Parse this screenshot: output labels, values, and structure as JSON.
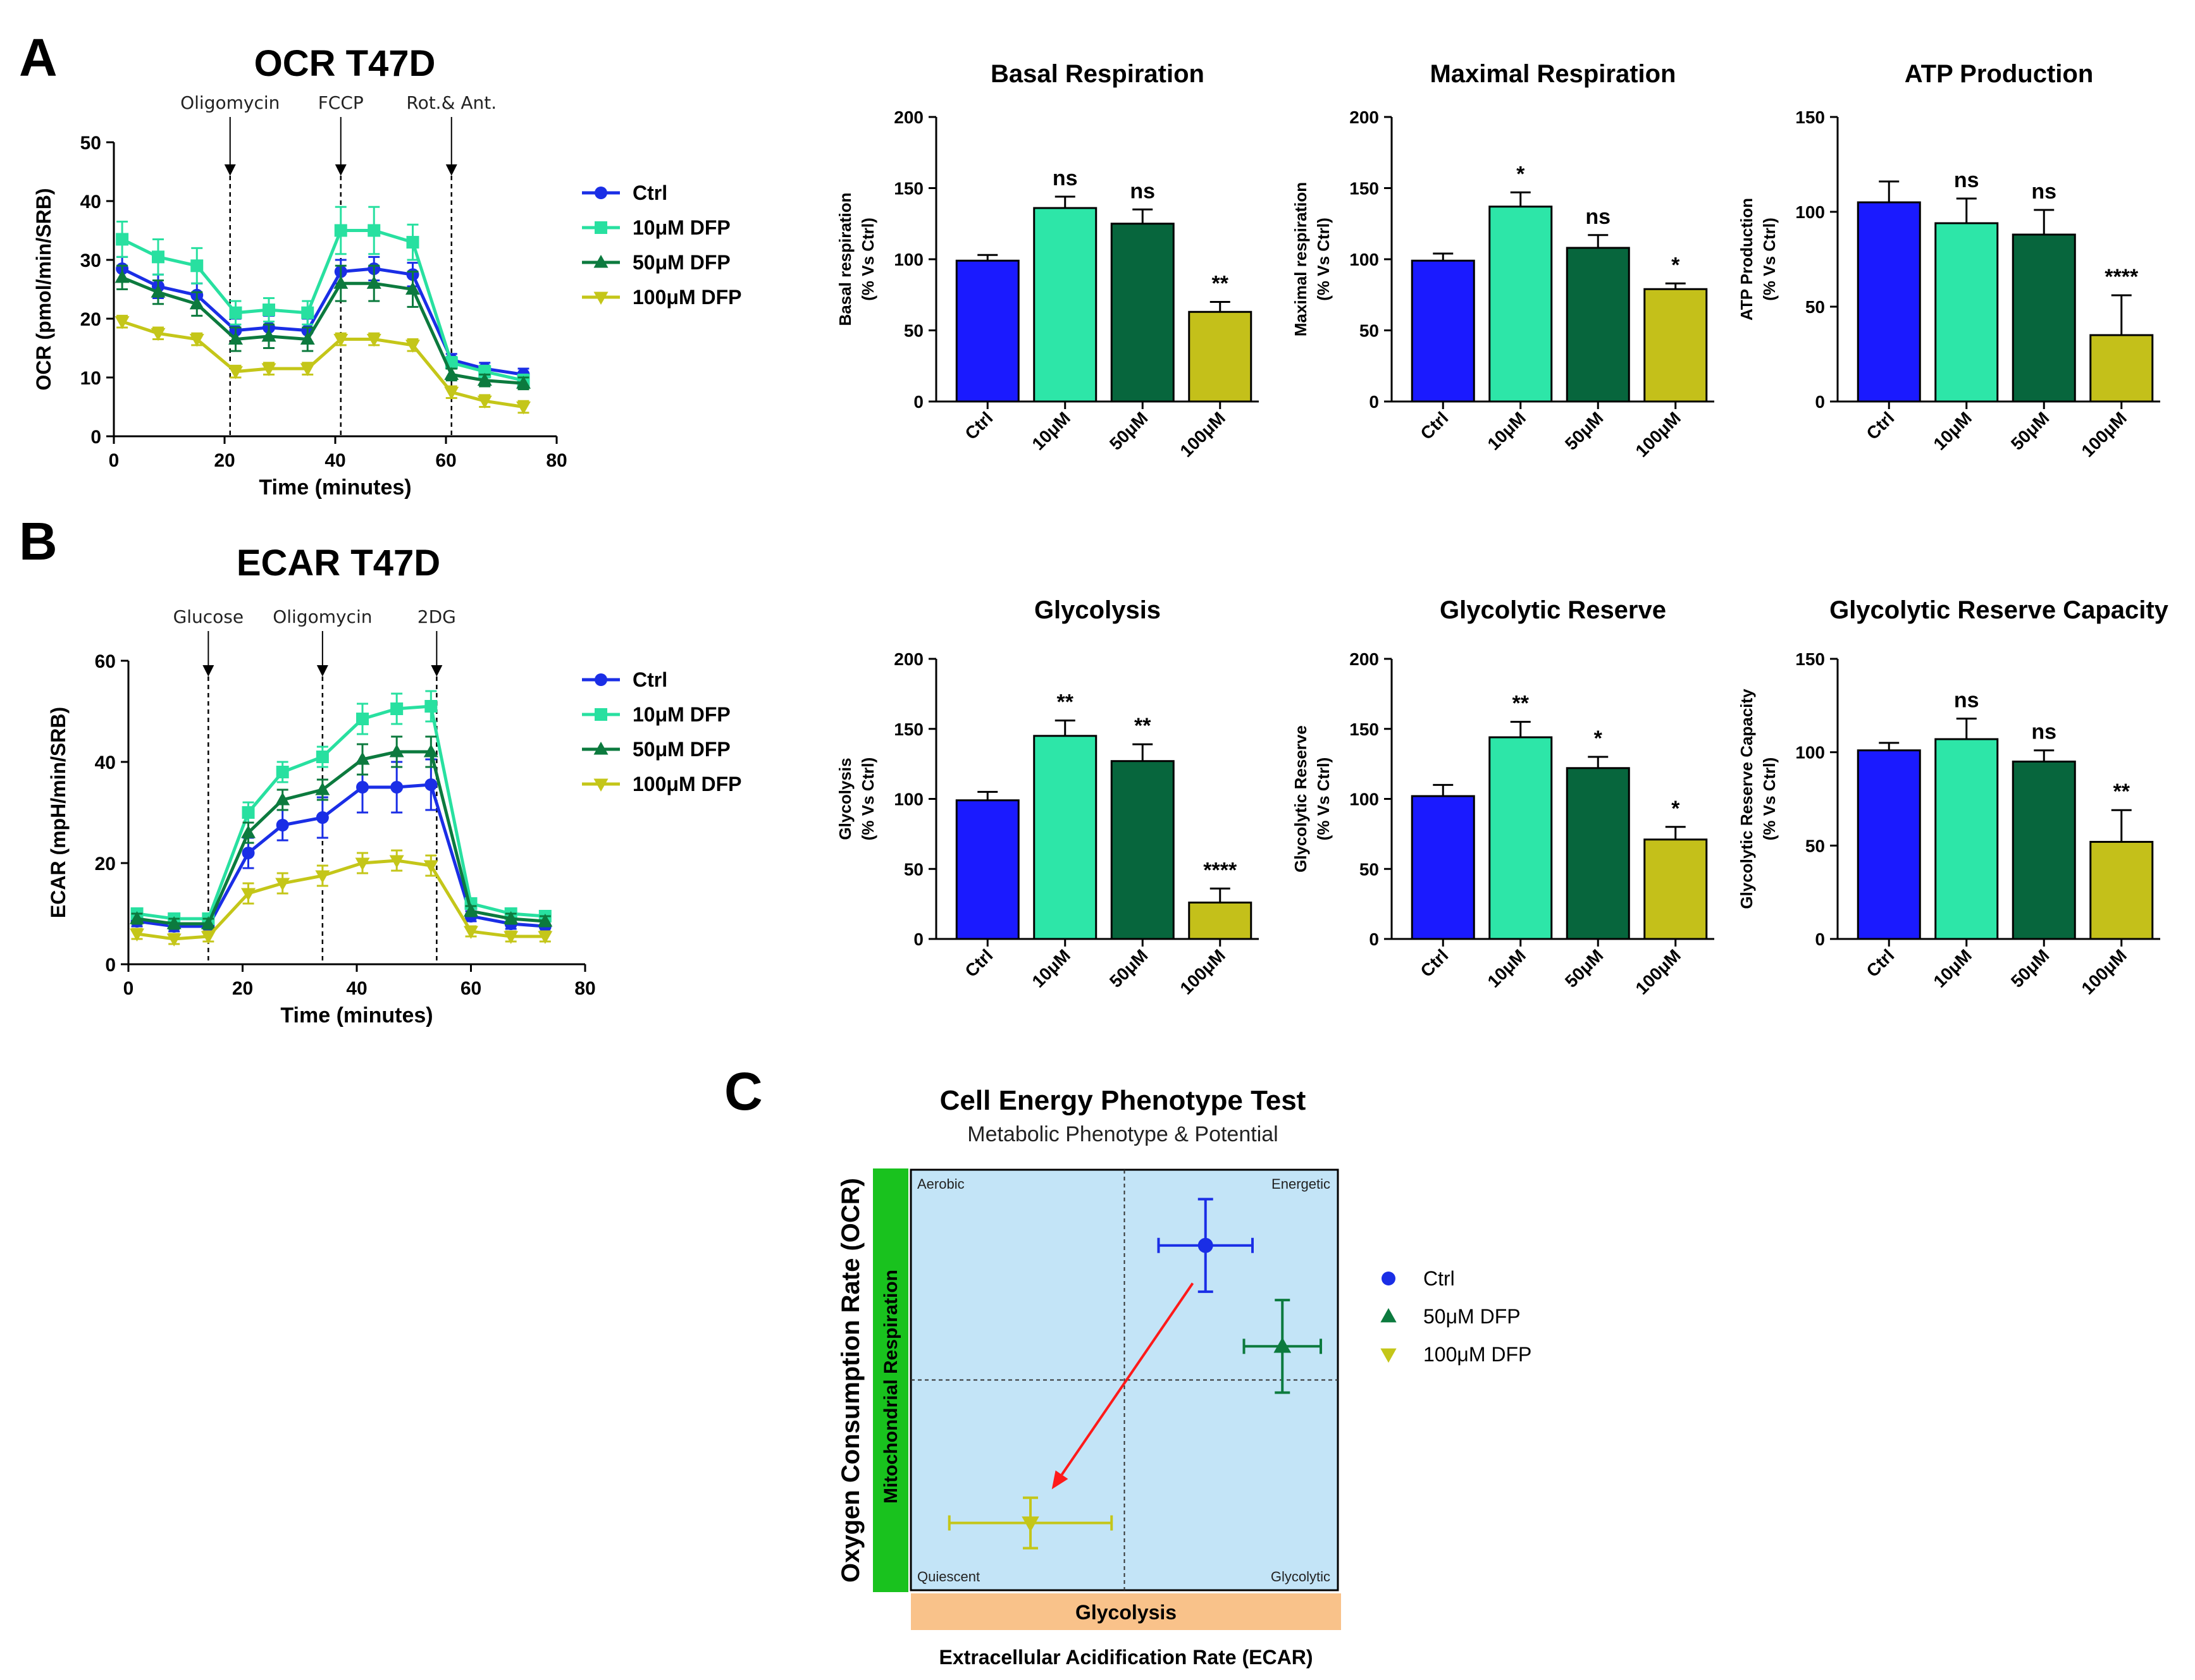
{
  "panel_labels": [
    "A",
    "B",
    "C"
  ],
  "chart_data": [
    {
      "id": "ocr_line",
      "type": "line",
      "title": "OCR  T47D",
      "xlabel": "Time (minutes)",
      "ylabel": "OCR (pmol/min/SRB)",
      "xlim": [
        0,
        80
      ],
      "ylim": [
        0,
        50
      ],
      "xticks": [
        0,
        20,
        40,
        60,
        80
      ],
      "yticks": [
        0,
        10,
        20,
        30,
        40,
        50
      ],
      "injections": [
        {
          "x": 21,
          "label": "Oligomycin"
        },
        {
          "x": 41,
          "label": "FCCP"
        },
        {
          "x": 61,
          "label": "Rot.& Ant."
        }
      ],
      "x": [
        1.5,
        8,
        15,
        22,
        28,
        35,
        41,
        47,
        54,
        61,
        67,
        74
      ],
      "series": [
        {
          "name": "Ctrl",
          "color": "#1a2ee6",
          "marker": "circle",
          "values": [
            28.5,
            25.5,
            24,
            18,
            18.5,
            18,
            28,
            28.5,
            27.5,
            13,
            11.5,
            10.5
          ],
          "errors": [
            2,
            2,
            2,
            2,
            2,
            2,
            2,
            2,
            2,
            1,
            1,
            1
          ]
        },
        {
          "name": "10μM DFP",
          "color": "#28e0a0",
          "marker": "square",
          "values": [
            33.5,
            30.5,
            29,
            21,
            21.5,
            21,
            35,
            35,
            33,
            12.5,
            11,
            9.5
          ],
          "errors": [
            3,
            3,
            3,
            2,
            2,
            2,
            4,
            4,
            3,
            1,
            1,
            1
          ]
        },
        {
          "name": "50μM DFP",
          "color": "#0c7a3e",
          "marker": "triangle",
          "values": [
            27,
            24.5,
            22.5,
            16.5,
            17,
            16.5,
            26,
            26,
            25,
            10.5,
            9.5,
            9
          ],
          "errors": [
            2,
            2,
            2,
            2,
            2,
            2,
            3,
            3,
            3,
            1,
            1,
            1
          ]
        },
        {
          "name": "100μM DFP",
          "color": "#c4c619",
          "marker": "triangle-down",
          "values": [
            19.5,
            17.5,
            16.5,
            11,
            11.5,
            11.5,
            16.5,
            16.5,
            15.5,
            7.5,
            6,
            5
          ],
          "errors": [
            1,
            1,
            1,
            1,
            1,
            1,
            1,
            1,
            1,
            1,
            1,
            1
          ]
        }
      ]
    },
    {
      "id": "basal",
      "type": "bar",
      "title": "Basal  Respiration",
      "ylabel_lines": [
        "Basal respiration",
        "(% Vs Ctrl)"
      ],
      "ylim": [
        0,
        200
      ],
      "yticks": [
        0,
        50,
        100,
        150,
        200
      ],
      "categories": [
        "Ctrl",
        "10μM",
        "50μM",
        "100μM"
      ],
      "colors": [
        "#1a1aff",
        "#2de6a8",
        "#07663d",
        "#c4c01a"
      ],
      "values": [
        99,
        136,
        125,
        63
      ],
      "errors": [
        4,
        8,
        10,
        7
      ],
      "sig": [
        "",
        "ns",
        "ns",
        "**"
      ]
    },
    {
      "id": "maximal",
      "type": "bar",
      "title": "Maximal  Respiration",
      "ylabel_lines": [
        "Maximal respiration",
        "(% Vs Ctrl)"
      ],
      "ylim": [
        0,
        200
      ],
      "yticks": [
        0,
        50,
        100,
        150,
        200
      ],
      "categories": [
        "Ctrl",
        "10μM",
        "50μM",
        "100μM"
      ],
      "colors": [
        "#1a1aff",
        "#2de6a8",
        "#07663d",
        "#c4c01a"
      ],
      "values": [
        99,
        137,
        108,
        79
      ],
      "errors": [
        5,
        10,
        9,
        4
      ],
      "sig": [
        "",
        "*",
        "ns",
        "*"
      ]
    },
    {
      "id": "atp",
      "type": "bar",
      "title": "ATP Production",
      "ylabel_lines": [
        "ATP Production",
        "(% Vs Ctrl)"
      ],
      "ylim": [
        0,
        150
      ],
      "yticks": [
        0,
        50,
        100,
        150
      ],
      "categories": [
        "Ctrl",
        "10μM",
        "50μM",
        "100μM"
      ],
      "colors": [
        "#1a1aff",
        "#2de6a8",
        "#07663d",
        "#c4c01a"
      ],
      "values": [
        105,
        94,
        88,
        35
      ],
      "errors": [
        11,
        13,
        13,
        21
      ],
      "sig": [
        "",
        "ns",
        "ns",
        "****"
      ]
    },
    {
      "id": "ecar_line",
      "type": "line",
      "title": "ECAR  T47D",
      "xlabel": "Time (minutes)",
      "ylabel": "ECAR (mpH/min/SRB)",
      "xlim": [
        0,
        80
      ],
      "ylim": [
        0,
        60
      ],
      "xticks": [
        0,
        20,
        40,
        60,
        80
      ],
      "yticks": [
        0,
        20,
        40,
        60
      ],
      "injections": [
        {
          "x": 14,
          "label": "Glucose"
        },
        {
          "x": 34,
          "label": "Oligomycin"
        },
        {
          "x": 54,
          "label": "2DG"
        }
      ],
      "x": [
        1.5,
        8,
        14,
        21,
        27,
        34,
        41,
        47,
        53,
        60,
        67,
        73
      ],
      "series": [
        {
          "name": "Ctrl",
          "color": "#1a2ee6",
          "marker": "circle",
          "values": [
            8.5,
            7.5,
            7.5,
            22,
            27.5,
            29,
            35,
            35,
            35.5,
            9.5,
            8,
            7.5
          ],
          "errors": [
            1,
            1,
            1,
            3,
            3,
            4,
            5,
            5,
            5,
            1,
            1,
            1
          ]
        },
        {
          "name": "10μM DFP",
          "color": "#28e0a0",
          "marker": "square",
          "values": [
            10,
            9,
            9,
            30,
            38,
            41,
            48.5,
            50.5,
            51,
            12,
            10,
            9.5
          ],
          "errors": [
            1,
            1,
            1,
            2,
            2,
            2,
            3,
            3,
            3,
            1,
            1,
            1
          ]
        },
        {
          "name": "50μM DFP",
          "color": "#0c7a3e",
          "marker": "triangle",
          "values": [
            9,
            8,
            8,
            26,
            32.5,
            34.5,
            40.5,
            42,
            42,
            10.5,
            9,
            8.5
          ],
          "errors": [
            1,
            1,
            1,
            2,
            2,
            2,
            3,
            3,
            3,
            1,
            1,
            1
          ]
        },
        {
          "name": "100μM DFP",
          "color": "#c4c619",
          "marker": "triangle-down",
          "values": [
            6,
            5,
            5.5,
            14,
            16,
            17.5,
            20,
            20.5,
            19.5,
            6.5,
            5.5,
            5.5
          ],
          "errors": [
            1,
            1,
            1,
            2,
            2,
            2,
            2,
            2,
            2,
            1,
            1,
            1
          ]
        }
      ]
    },
    {
      "id": "glycolysis",
      "type": "bar",
      "title": "Glycolysis",
      "ylabel_lines": [
        "Glycolysis",
        "(% Vs Ctrl)"
      ],
      "ylim": [
        0,
        200
      ],
      "yticks": [
        0,
        50,
        100,
        150,
        200
      ],
      "categories": [
        "Ctrl",
        "10μM",
        "50μM",
        "100μM"
      ],
      "colors": [
        "#1a1aff",
        "#2de6a8",
        "#07663d",
        "#c4c01a"
      ],
      "values": [
        99,
        145,
        127,
        26
      ],
      "errors": [
        6,
        11,
        12,
        10
      ],
      "sig": [
        "",
        "**",
        "**",
        "****"
      ]
    },
    {
      "id": "glyc_reserve",
      "type": "bar",
      "title": "Glycolytic Reserve",
      "ylabel_lines": [
        "Glycolytic Reserve",
        "(% Vs Ctrl)"
      ],
      "ylim": [
        0,
        200
      ],
      "yticks": [
        0,
        50,
        100,
        150,
        200
      ],
      "categories": [
        "Ctrl",
        "10μM",
        "50μM",
        "100μM"
      ],
      "colors": [
        "#1a1aff",
        "#2de6a8",
        "#07663d",
        "#c4c01a"
      ],
      "values": [
        102,
        144,
        122,
        71
      ],
      "errors": [
        8,
        11,
        8,
        9
      ],
      "sig": [
        "",
        "**",
        "*",
        "*"
      ]
    },
    {
      "id": "glyc_capacity",
      "type": "bar",
      "title": "Glycolytic Reserve Capacity",
      "ylabel_lines": [
        "Glycolytic Reserve Capacity",
        "(% Vs Ctrl)"
      ],
      "ylim": [
        0,
        150
      ],
      "yticks": [
        0,
        50,
        100,
        150
      ],
      "categories": [
        "Ctrl",
        "10μM",
        "50μM",
        "100μM"
      ],
      "colors": [
        "#1a1aff",
        "#2de6a8",
        "#07663d",
        "#c4c01a"
      ],
      "values": [
        101,
        107,
        95,
        52
      ],
      "errors": [
        4,
        11,
        6,
        17
      ],
      "sig": [
        "",
        "ns",
        "ns",
        "**"
      ]
    },
    {
      "id": "phenotype",
      "type": "scatter",
      "title": "Cell Energy Phenotype Test",
      "subtitle": "Metabolic Phenotype & Potential",
      "xlabel": "Extracellular Acidification Rate (ECAR)",
      "ylabel": "Oxygen Consumption Rate (OCR)",
      "x_bar_label": "Glycolysis",
      "y_bar_label": "Mitochondrial Respiration",
      "xlim": [
        0,
        100
      ],
      "ylim": [
        0,
        100
      ],
      "quadrants": [
        "Aerobic",
        "Energetic",
        "Quiescent",
        "Glycolytic"
      ],
      "divider": {
        "x": 50,
        "y": 50
      },
      "points": [
        {
          "name": "Ctrl",
          "color": "#1a2ee6",
          "marker": "circle",
          "x": 69,
          "y": 82,
          "xerr": 11,
          "yerr": 11
        },
        {
          "name": "50μM DFP",
          "color": "#0c7a3e",
          "marker": "triangle",
          "x": 87,
          "y": 58,
          "xerr": 9,
          "yerr": 11
        },
        {
          "name": "100μM DFP",
          "color": "#c4c619",
          "marker": "triangle-down",
          "x": 28,
          "y": 16,
          "xerr": 19,
          "yerr": 6
        }
      ],
      "arrow": {
        "from": [
          66,
          73
        ],
        "to": [
          33,
          24
        ],
        "color": "#ff1a1a"
      }
    }
  ]
}
